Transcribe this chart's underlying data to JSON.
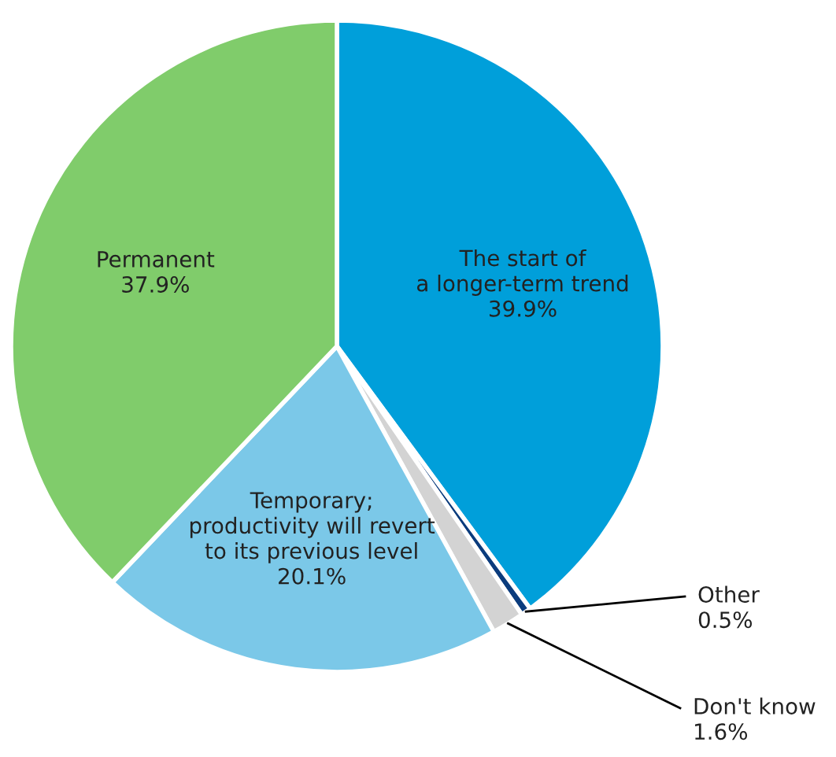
{
  "chart_data": {
    "type": "pie",
    "categories": [
      "The start of\na longer-term trend",
      "Other",
      "Don't know",
      "Temporary;\nproductivity will revert\nto its previous level",
      "Permanent"
    ],
    "values": [
      39.9,
      0.5,
      1.6,
      20.1,
      37.9
    ],
    "colors": [
      "#009fda",
      "#0b3c7d",
      "#d3d3d3",
      "#7bc8e8",
      "#80cc6b"
    ],
    "value_labels": [
      "39.9%",
      "0.5%",
      "1.6%",
      "20.1%",
      "37.9%"
    ]
  }
}
